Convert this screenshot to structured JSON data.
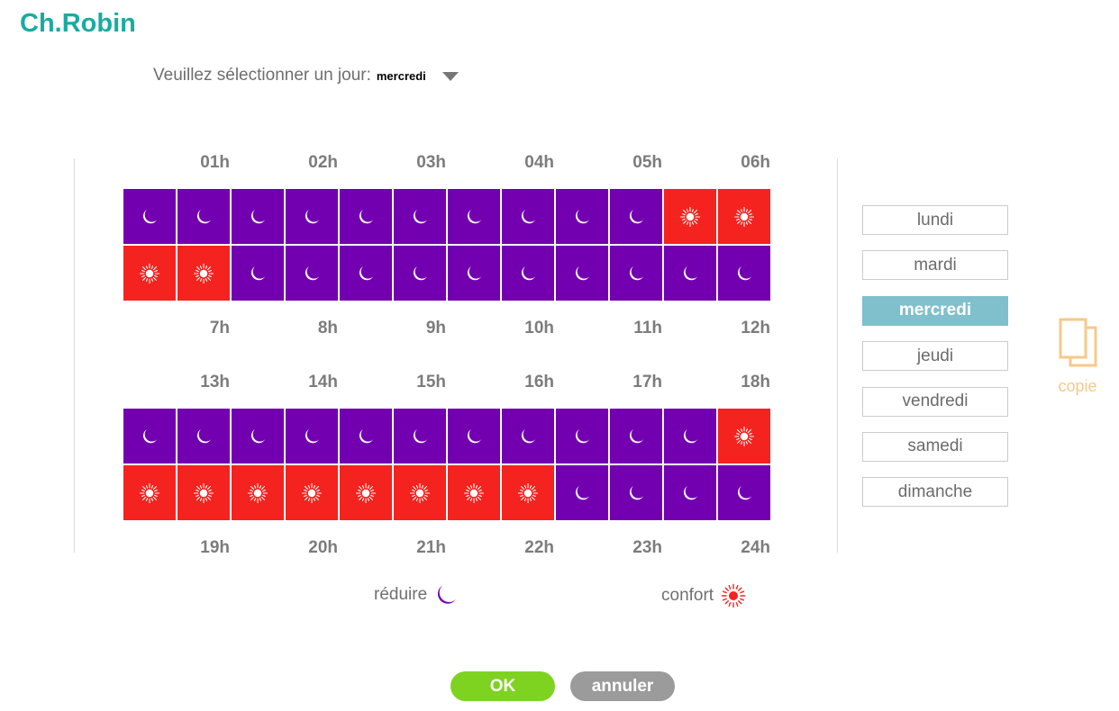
{
  "header": {
    "title": "Ch.Robin"
  },
  "day_select": {
    "prompt": "Veuillez sélectionner un jour:",
    "value": "mercredi"
  },
  "blocks": [
    {
      "top_labels": [
        "01h",
        "02h",
        "03h",
        "04h",
        "05h",
        "06h"
      ],
      "rows": [
        [
          "reduire",
          "reduire",
          "reduire",
          "reduire",
          "reduire",
          "reduire",
          "reduire",
          "reduire",
          "reduire",
          "reduire",
          "confort",
          "confort"
        ],
        [
          "confort",
          "confort",
          "reduire",
          "reduire",
          "reduire",
          "reduire",
          "reduire",
          "reduire",
          "reduire",
          "reduire",
          "reduire",
          "reduire"
        ]
      ],
      "bottom_labels": [
        "7h",
        "8h",
        "9h",
        "10h",
        "11h",
        "12h"
      ]
    },
    {
      "top_labels": [
        "13h",
        "14h",
        "15h",
        "16h",
        "17h",
        "18h"
      ],
      "rows": [
        [
          "reduire",
          "reduire",
          "reduire",
          "reduire",
          "reduire",
          "reduire",
          "reduire",
          "reduire",
          "reduire",
          "reduire",
          "reduire",
          "confort"
        ],
        [
          "confort",
          "confort",
          "confort",
          "confort",
          "confort",
          "confort",
          "confort",
          "confort",
          "reduire",
          "reduire",
          "reduire",
          "reduire"
        ]
      ],
      "bottom_labels": [
        "19h",
        "20h",
        "21h",
        "22h",
        "23h",
        "24h"
      ]
    }
  ],
  "days": [
    {
      "label": "lundi",
      "active": false
    },
    {
      "label": "mardi",
      "active": false
    },
    {
      "label": "mercredi",
      "active": true
    },
    {
      "label": "jeudi",
      "active": false
    },
    {
      "label": "vendredi",
      "active": false
    },
    {
      "label": "samedi",
      "active": false
    },
    {
      "label": "dimanche",
      "active": false
    }
  ],
  "copy": {
    "label": "copie",
    "icon": "copy-icon"
  },
  "legend": {
    "reduire_label": "réduire",
    "confort_label": "confort",
    "reduire_icon": "moon-icon",
    "confort_icon": "sun-icon"
  },
  "buttons": {
    "ok": "OK",
    "cancel": "annuler"
  },
  "colors": {
    "title": "#1aaba0",
    "reduire": "#7300b0",
    "confort": "#f4231f",
    "active_day": "#80bfcc",
    "ok": "#7ed321",
    "cancel": "#9b9b9b",
    "copy": "#f8c88a"
  }
}
